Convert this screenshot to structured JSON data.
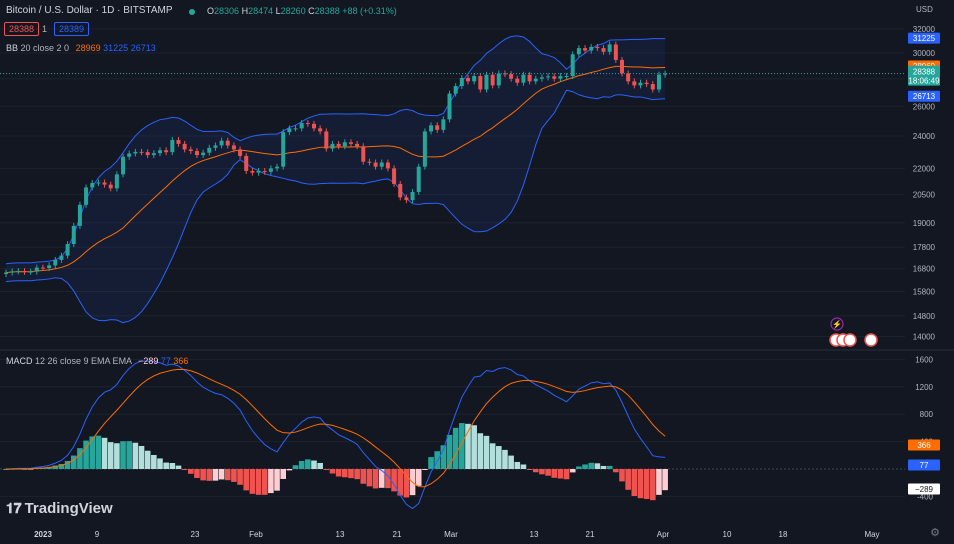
{
  "header": {
    "title": "Bitcoin / U.S. Dollar · 1D · BITSTAMP",
    "ohlc": [
      {
        "k": "O",
        "v": "28306"
      },
      {
        "k": "H",
        "v": "28474"
      },
      {
        "k": "L",
        "v": "28260"
      },
      {
        "k": "C",
        "v": "28388"
      }
    ],
    "change": "+88 (+0.31%)",
    "bid": "28388",
    "spread": "1",
    "ask": "28389",
    "currency": "USD"
  },
  "legends": {
    "bb": {
      "name": "BB",
      "params": "20 close 2 0",
      "basis": "28969",
      "upper": "31225",
      "lower": "26713"
    },
    "macd": {
      "name": "MACD",
      "params": "12 26 close 9 EMA EMA",
      "hist": "−289",
      "macd": "77",
      "signal": "366"
    }
  },
  "branding": {
    "logo": "TradingView"
  },
  "colors": {
    "bg": "#131722",
    "grid": "#1e222d",
    "up": "#26a69a",
    "down": "#ef5350",
    "upLight": "#b2dfdb",
    "downLight": "#ffcdd2",
    "bbBand": "#2962ff",
    "basis": "#ff6d00",
    "macdLine": "#2962ff",
    "signalLine": "#ff6d00",
    "text": "#b2b5be"
  },
  "chart_data": [
    {
      "type": "candlestick",
      "title": "Bitcoin / U.S. Dollar · 1D · BITSTAMP",
      "x_ticks": [
        "2023",
        "9",
        "23",
        "Feb",
        "13",
        "21",
        "Mar",
        "13",
        "21",
        "Apr",
        "10",
        "18",
        "May"
      ],
      "y_ticks": [
        32000,
        30000,
        28000,
        26000,
        24000,
        22000,
        20500,
        19000,
        17800,
        16800,
        15800,
        14800,
        14000
      ],
      "y_scale": "log",
      "ylim": [
        13500,
        33500
      ],
      "closes": [
        16625,
        16680,
        16690,
        16660,
        16670,
        16850,
        16830,
        16950,
        17200,
        17400,
        17950,
        18850,
        19950,
        20900,
        21150,
        21180,
        21060,
        20850,
        21650,
        22700,
        22900,
        23000,
        22980,
        22800,
        22920,
        23100,
        22980,
        23750,
        23500,
        23150,
        23050,
        22800,
        22950,
        23250,
        23400,
        23700,
        23400,
        23150,
        22750,
        21850,
        21750,
        21850,
        21800,
        22000,
        22100,
        24250,
        24500,
        24500,
        24850,
        24800,
        24500,
        24300,
        23200,
        23500,
        23350,
        23600,
        23500,
        23350,
        22400,
        22350,
        22100,
        22350,
        22000,
        21100,
        20350,
        20200,
        20650,
        22100,
        24300,
        24700,
        24400,
        25100,
        26900,
        27450,
        28050,
        27800,
        28200,
        27200,
        28300,
        27500,
        28400,
        28350,
        28000,
        27700,
        28300,
        27800,
        28000,
        28100,
        28180,
        28000,
        28200,
        28200,
        29900,
        30400,
        30200,
        30500,
        30400,
        30100,
        30700,
        29450,
        28400,
        27800,
        27500,
        27700,
        27600,
        27200,
        28306,
        28388
      ],
      "bollinger": {
        "upper": "31225",
        "basis": "28969",
        "lower": "26713",
        "params": "20 close 2 0"
      },
      "macd": {
        "params": "12 26 close 9 EMA EMA",
        "histogram": "−289",
        "macd": "77",
        "signal": "366",
        "y_ticks": [
          1600,
          1200,
          800,
          400,
          -400
        ]
      },
      "last_price_labels": {
        "price": "28388",
        "countdown": "18:06:49"
      }
    }
  ]
}
